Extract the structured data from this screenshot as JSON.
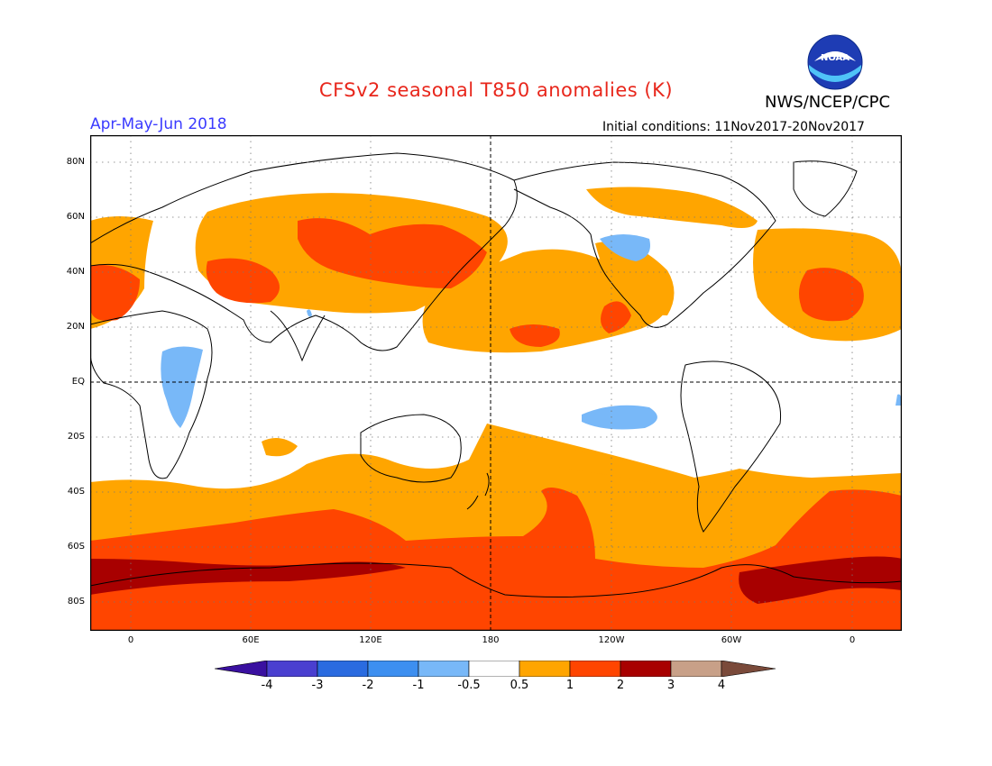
{
  "header": {
    "title": "CFSv2 seasonal T850 anomalies (K)",
    "agency": "NWS/NCEP/CPC",
    "logo_text": "NOAA",
    "period": "Apr-May-Jun 2018",
    "initial_conditions": "Initial conditions: 11Nov2017-20Nov2017"
  },
  "axes": {
    "lat_labels": [
      "80N",
      "60N",
      "40N",
      "20N",
      "EQ",
      "20S",
      "40S",
      "60S",
      "80S"
    ],
    "lon_labels": [
      "0",
      "60E",
      "120E",
      "180",
      "120W",
      "60W",
      "0"
    ]
  },
  "colorbar": {
    "labels": [
      "-4",
      "-3",
      "-2",
      "-1",
      "-0.5",
      "0.5",
      "1",
      "2",
      "3",
      "4"
    ],
    "colors": {
      "below_-4": "#3a10a0",
      "-4_-3": "#4a3fd0",
      "-3_-2": "#2a6be0",
      "-2_-1": "#3d8ff0",
      "-1_-0.5": "#78b8f8",
      "-0.5_0.5": "#ffffff",
      "0.5_1": "#ffa500",
      "1_2": "#ff4500",
      "2_3": "#a80000",
      "3_4": "#c8a088",
      "above_4": "#7a4a3a"
    }
  },
  "map": {
    "land_outline_color": "#000000",
    "grid": "dotted",
    "background": "#ffffff"
  }
}
